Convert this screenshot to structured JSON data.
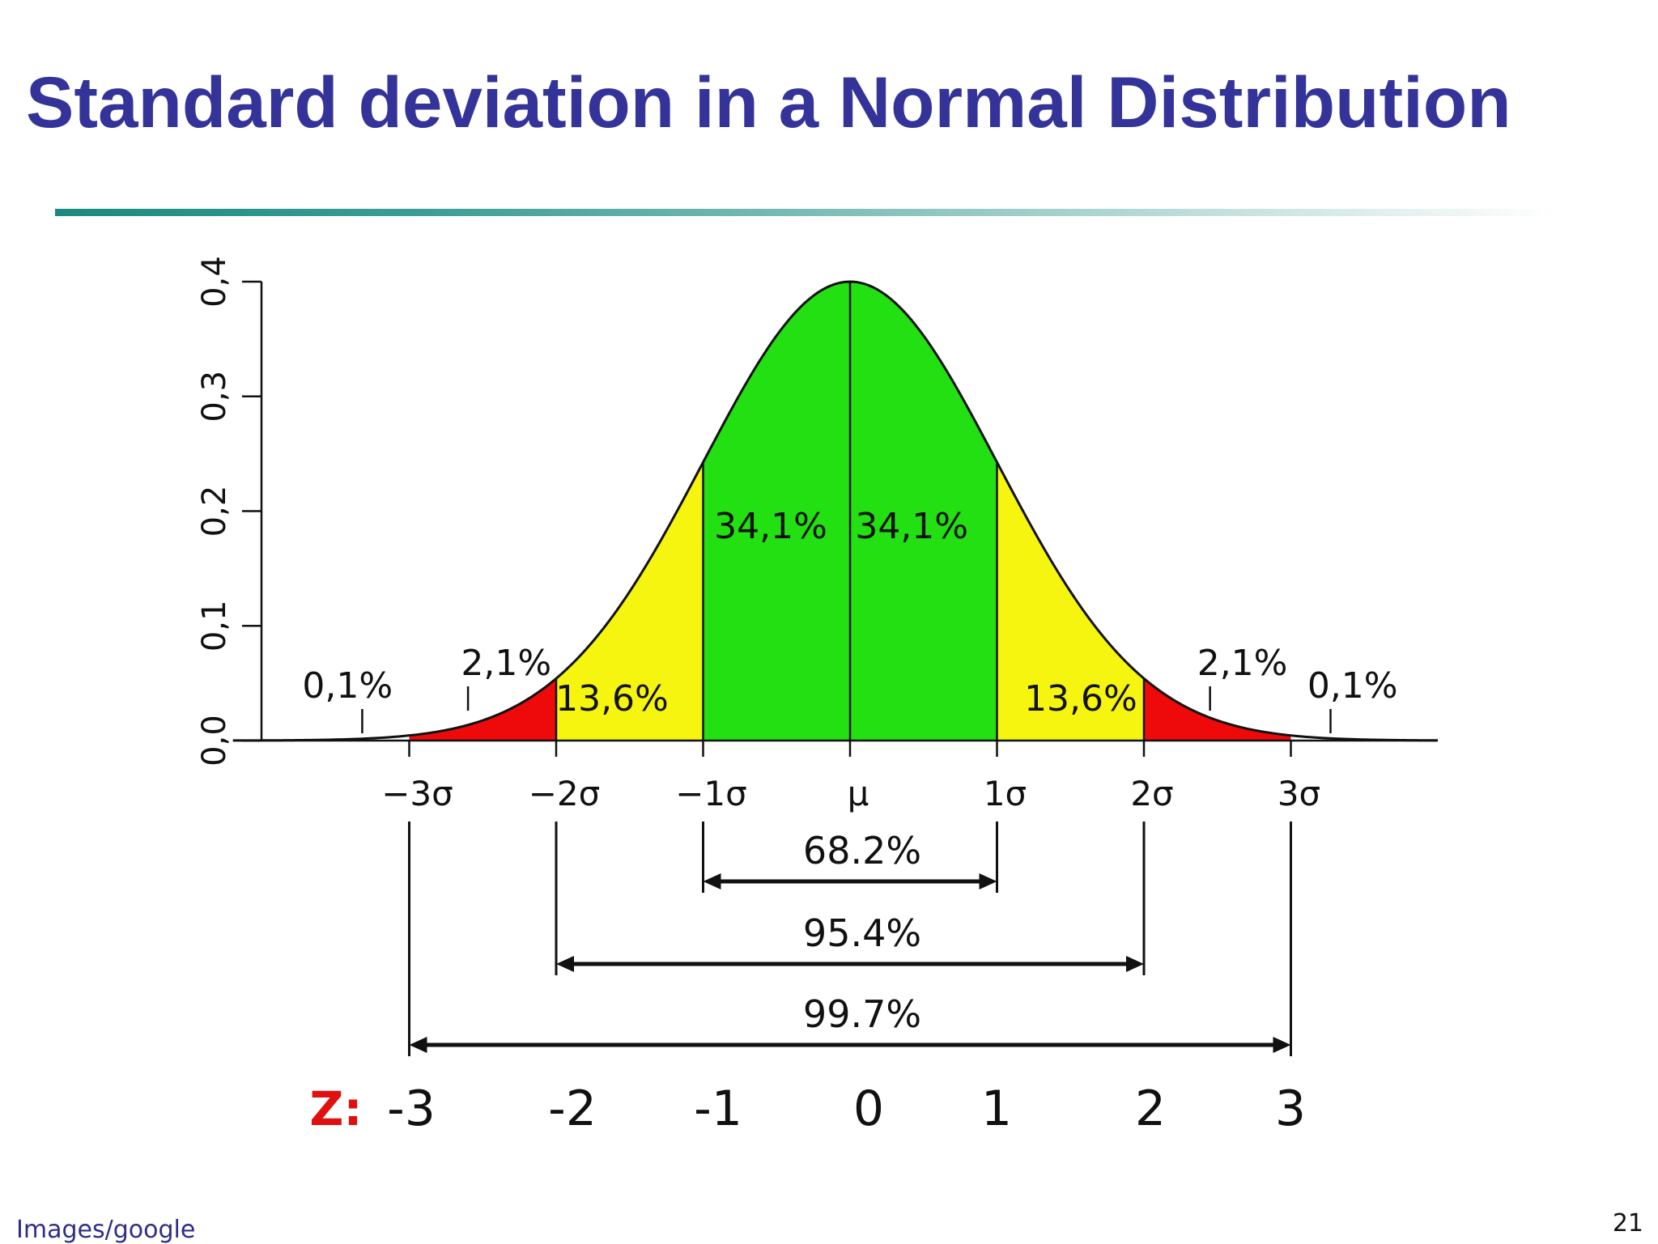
{
  "slide": {
    "title": "Standard deviation in a Normal Distribution",
    "source": "Images/google",
    "page_number": "21"
  },
  "colors": {
    "title": "#333399",
    "center_band": "#22e011",
    "middle_band": "#f5f510",
    "tail_band": "#ee0a0a",
    "z_label": "#e01010"
  },
  "chart_data": {
    "type": "area",
    "distribution": "normal",
    "mean": 0,
    "sd": 1,
    "xlim": [
      -4.2,
      4.0
    ],
    "ylim": [
      0,
      0.4
    ],
    "yticks": [
      "0,0",
      "0,1",
      "0,2",
      "0,3",
      "0,4"
    ],
    "xticks": [
      "−3σ",
      "−2σ",
      "−1σ",
      "μ",
      "1σ",
      "2σ",
      "3σ"
    ],
    "bands": [
      {
        "from": -3,
        "to": -2,
        "pct": "2,1%",
        "color": "#ee0a0a"
      },
      {
        "from": -2,
        "to": -1,
        "pct": "13,6%",
        "color": "#f5f510"
      },
      {
        "from": -1,
        "to": 0,
        "pct": "34,1%",
        "color": "#22e011"
      },
      {
        "from": 0,
        "to": 1,
        "pct": "34,1%",
        "color": "#22e011"
      },
      {
        "from": 1,
        "to": 2,
        "pct": "13,6%",
        "color": "#f5f510"
      },
      {
        "from": 2,
        "to": 3,
        "pct": "2,1%",
        "color": "#ee0a0a"
      }
    ],
    "tail_labels": [
      {
        "side": "left",
        "pct": "0,1%"
      },
      {
        "side": "right",
        "pct": "0,1%"
      }
    ],
    "ranges": [
      {
        "from": -1,
        "to": 1,
        "label": "68.2%"
      },
      {
        "from": -2,
        "to": 2,
        "label": "95.4%"
      },
      {
        "from": -3,
        "to": 3,
        "label": "99.7%"
      }
    ],
    "z_label": "Z:",
    "z_values": [
      "-3",
      "-2",
      "-1",
      "0",
      "1",
      "2",
      "3"
    ]
  }
}
